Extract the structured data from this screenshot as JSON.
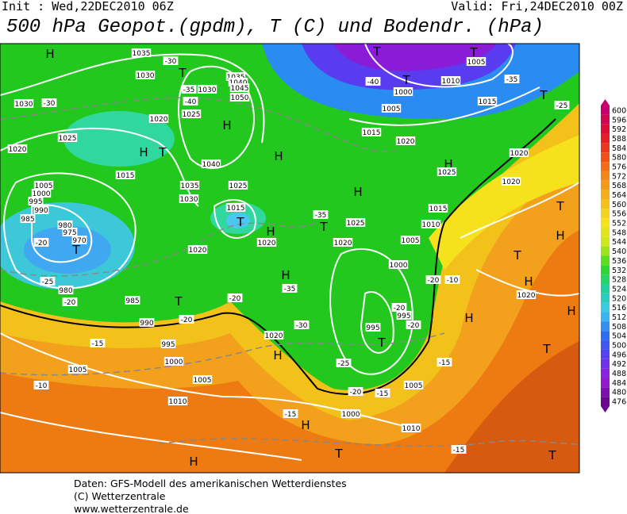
{
  "header": {
    "init": "Init : Wed,22DEC2010 06Z",
    "valid": "Valid: Fri,24DEC2010 00Z",
    "title": "500 hPa Geopot.(gpdm), T (C) und Bodendr. (hPa)"
  },
  "colorbar": {
    "ticks": [
      600,
      596,
      592,
      588,
      584,
      580,
      576,
      572,
      568,
      564,
      560,
      556,
      552,
      548,
      544,
      540,
      536,
      532,
      528,
      524,
      520,
      516,
      512,
      508,
      504,
      500,
      496,
      492,
      488,
      484,
      480,
      476
    ]
  },
  "map": {
    "labels": [
      "H",
      "1035",
      "-30",
      "1030",
      "T",
      "1035",
      "1040",
      "1045",
      "1050",
      "1030",
      "-35",
      "-40",
      "1025",
      "H",
      "1030",
      "-30",
      "1020",
      "1025",
      "1020",
      "H",
      "T",
      "1015",
      "1040",
      "1035",
      "1030",
      "1025",
      "1015",
      "T",
      "1005",
      "1000",
      "995",
      "990",
      "985",
      "980",
      "975",
      "970",
      "T",
      "-20",
      "-25",
      "980",
      "985",
      "-20",
      "990",
      "T",
      "995",
      "1000",
      "1005",
      "1010",
      "1005",
      "-15",
      "-10",
      "H",
      "1020",
      "1020",
      "1020",
      "H",
      "H",
      "T",
      "1025",
      "1020",
      "H",
      "-35",
      "1015",
      "1020",
      "H",
      "T",
      "T",
      "1005",
      "1000",
      "-40",
      "T",
      "1005",
      "1010",
      "1015",
      "-35",
      "T",
      "-25",
      "1020",
      "H",
      "1025",
      "1020",
      "1015",
      "1010",
      "1005",
      "1000",
      "T",
      "H",
      "1020",
      "-20",
      "-10",
      "-20",
      "995",
      "T",
      "995",
      "-20",
      "-25",
      "-20",
      "-15",
      "1005",
      "1010",
      "H",
      "T",
      "H",
      "-15",
      "1000",
      "-15",
      "-15",
      "H",
      "T",
      "H",
      "T",
      "H",
      "T",
      "-20",
      "-30",
      "-35",
      "-20"
    ]
  },
  "footer": {
    "lines": [
      "Daten: GFS-Modell des amerikanischen Wetterdienstes",
      "(C) Wetterzentrale",
      "www.wetterzentrale.de"
    ]
  }
}
